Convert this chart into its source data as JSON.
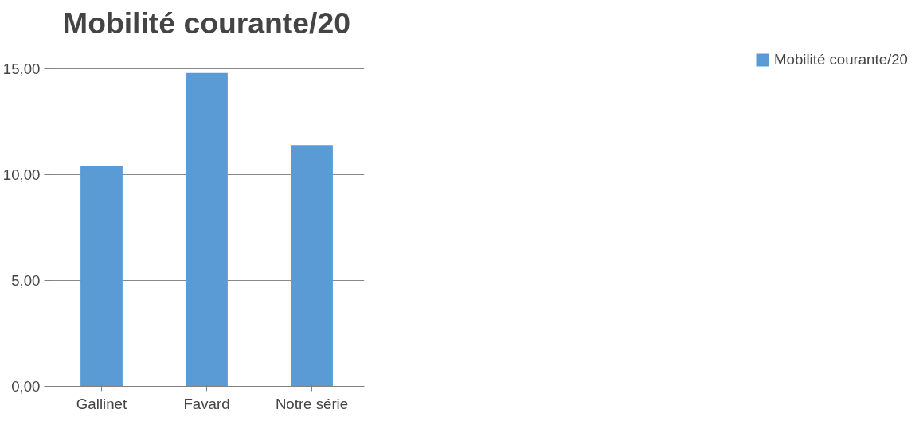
{
  "chart_data": {
    "type": "bar",
    "title": "Mobilité courante/20",
    "categories": [
      "Gallinet",
      "Favard",
      "Notre série"
    ],
    "series": [
      {
        "name": "Mobilité courante/20",
        "color": "#5b9bd5",
        "values": [
          10.4,
          14.8,
          11.4
        ]
      }
    ],
    "ylim": [
      0,
      15
    ],
    "yticks": [
      {
        "value": 0,
        "label": "0,00"
      },
      {
        "value": 5,
        "label": "5,00"
      },
      {
        "value": 10,
        "label": "10,00"
      },
      {
        "value": 15,
        "label": "15,00"
      }
    ],
    "grid": "y",
    "legend": "right"
  }
}
